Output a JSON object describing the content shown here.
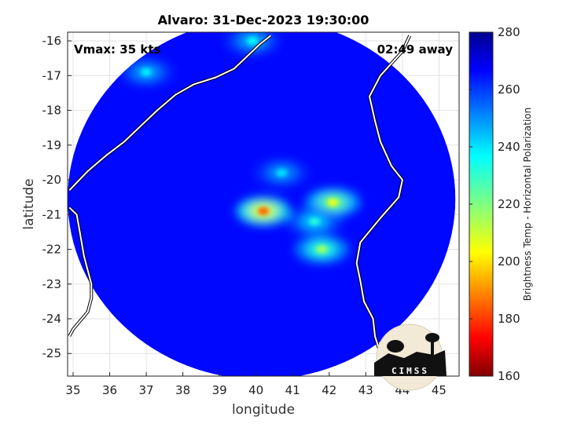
{
  "chart_data": {
    "type": "heatmap",
    "title": "Alvaro: 31-Dec-2023 19:30:00",
    "xlabel": "longitude",
    "ylabel": "latitude",
    "xlim": [
      34.85,
      45.55
    ],
    "ylim": [
      -25.65,
      -15.75
    ],
    "xticks": [
      35,
      36,
      37,
      38,
      39,
      40,
      41,
      42,
      43,
      44,
      45
    ],
    "yticks": [
      -16,
      -17,
      -18,
      -19,
      -20,
      -21,
      -22,
      -23,
      -24,
      -25
    ],
    "grid": true,
    "annotations": {
      "vmax": "Vmax: 35 kts",
      "time_away": "02:49 away"
    },
    "colorbar": {
      "label": "Brightness Temp - Horizontal Polarization",
      "min": 160,
      "max": 280,
      "ticks": [
        160,
        180,
        200,
        220,
        240,
        260,
        280
      ],
      "colormap": "jet"
    },
    "swath": {
      "center_lon": 40.15,
      "center_lat": -20.55,
      "radius_lon": 5.3,
      "radius_lat": 5.2,
      "background_temp": 266
    },
    "cold_features": [
      {
        "lon": 40.2,
        "lat": -20.9,
        "min_temp": 185
      },
      {
        "lon": 41.8,
        "lat": -22.0,
        "min_temp": 215
      },
      {
        "lon": 42.1,
        "lat": -20.65,
        "min_temp": 205
      },
      {
        "lon": 41.6,
        "lat": -21.2,
        "min_temp": 232
      },
      {
        "lon": 40.7,
        "lat": -19.8,
        "min_temp": 240
      },
      {
        "lon": 39.9,
        "lat": -16.0,
        "min_temp": 236
      },
      {
        "lon": 37.0,
        "lat": -16.9,
        "min_temp": 238
      }
    ],
    "coastlines": [
      [
        [
          34.9,
          -20.3
        ],
        [
          35.4,
          -19.75
        ],
        [
          35.9,
          -19.3
        ],
        [
          36.4,
          -18.9
        ],
        [
          36.9,
          -18.4
        ],
        [
          37.3,
          -18.0
        ],
        [
          37.8,
          -17.55
        ],
        [
          38.3,
          -17.25
        ],
        [
          38.9,
          -17.05
        ],
        [
          39.4,
          -16.8
        ],
        [
          39.8,
          -16.4
        ],
        [
          40.1,
          -16.1
        ],
        [
          40.4,
          -15.85
        ]
      ],
      [
        [
          34.9,
          -20.8
        ],
        [
          35.1,
          -21.0
        ],
        [
          35.2,
          -21.6
        ],
        [
          35.3,
          -22.2
        ],
        [
          35.4,
          -22.6
        ],
        [
          35.5,
          -23.0
        ],
        [
          35.5,
          -23.4
        ],
        [
          35.4,
          -23.8
        ],
        [
          35.0,
          -24.3
        ],
        [
          34.9,
          -24.5
        ]
      ],
      [
        [
          44.2,
          -15.85
        ],
        [
          44.0,
          -16.3
        ],
        [
          43.4,
          -17.0
        ],
        [
          43.1,
          -17.6
        ],
        [
          43.25,
          -18.3
        ],
        [
          43.4,
          -18.9
        ],
        [
          43.7,
          -19.6
        ],
        [
          44.0,
          -20.0
        ],
        [
          43.9,
          -20.5
        ],
        [
          43.4,
          -21.1
        ],
        [
          42.85,
          -21.8
        ],
        [
          42.75,
          -22.4
        ],
        [
          42.85,
          -22.9
        ],
        [
          42.95,
          -23.5
        ],
        [
          43.2,
          -24.0
        ],
        [
          43.25,
          -24.5
        ],
        [
          43.4,
          -25.0
        ],
        [
          43.6,
          -25.5
        ]
      ]
    ]
  }
}
